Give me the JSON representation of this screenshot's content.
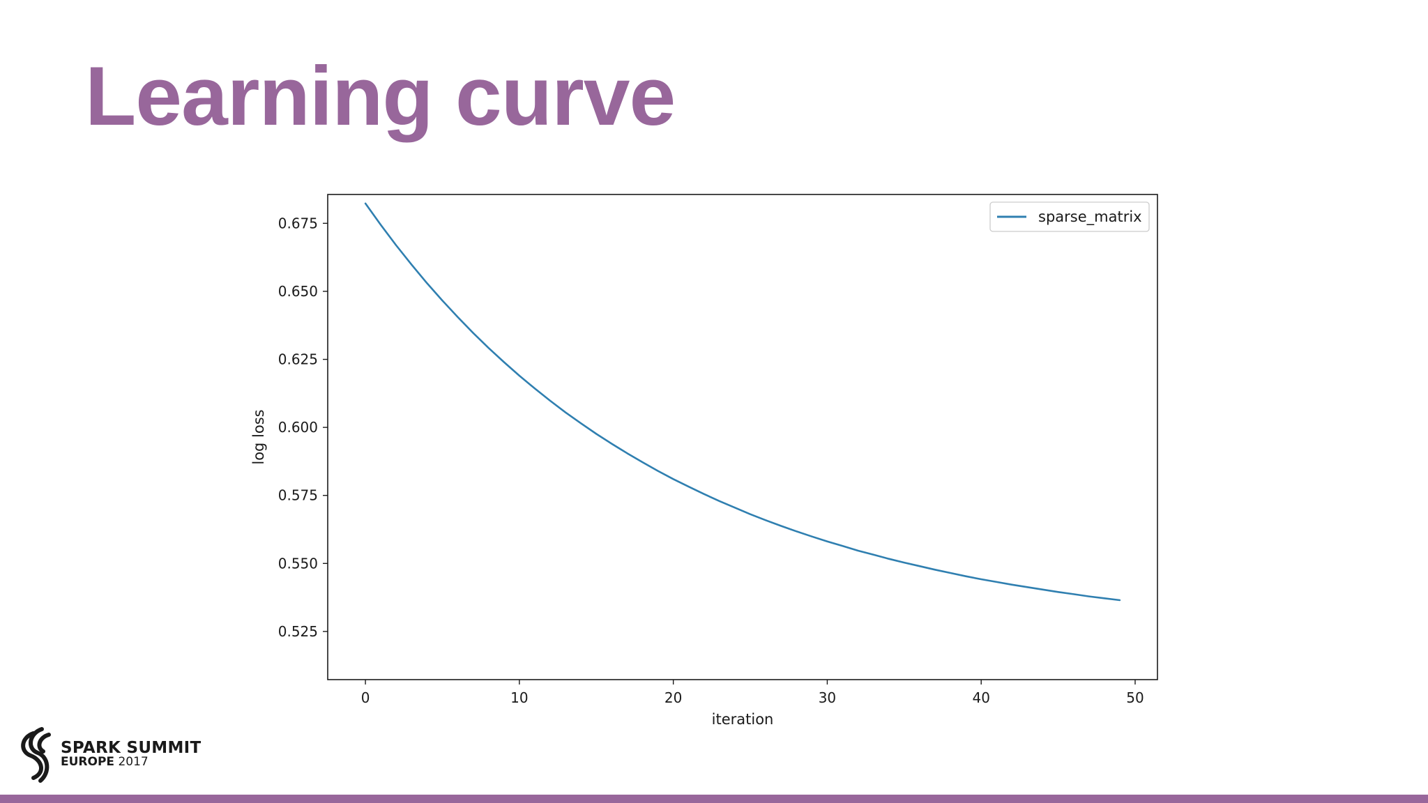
{
  "slide": {
    "title": "Learning curve",
    "brand_color": "#98679b",
    "logo": {
      "line1": "SPARK SUMMIT",
      "line2_bold": "EUROPE",
      "line2_rest": "2017"
    }
  },
  "chart_data": {
    "type": "line",
    "xlabel": "iteration",
    "ylabel": "log loss",
    "xlim": [
      -2.45,
      51.45
    ],
    "ylim": [
      0.5073,
      0.6856
    ],
    "xticks": [
      0,
      10,
      20,
      30,
      40,
      50
    ],
    "yticks": [
      0.525,
      0.55,
      0.575,
      0.6,
      0.625,
      0.65,
      0.675
    ],
    "ytick_labels": [
      "0.525",
      "0.550",
      "0.575",
      "0.600",
      "0.625",
      "0.650",
      "0.675"
    ],
    "legend_position": "top-right",
    "grid": false,
    "series": [
      {
        "name": "sparse_matrix",
        "color": "#2f7fb0",
        "x": [
          0,
          1,
          2,
          3,
          4,
          5,
          6,
          7,
          8,
          9,
          10,
          11,
          12,
          13,
          14,
          15,
          16,
          17,
          18,
          19,
          20,
          21,
          22,
          23,
          24,
          25,
          26,
          27,
          28,
          29,
          30,
          31,
          32,
          33,
          34,
          35,
          36,
          37,
          38,
          39,
          40,
          41,
          42,
          43,
          44,
          45,
          46,
          47,
          48,
          49
        ],
        "values": [
          0.6823,
          0.6744,
          0.6669,
          0.6598,
          0.653,
          0.6466,
          0.6405,
          0.6347,
          0.6292,
          0.624,
          0.619,
          0.6143,
          0.6098,
          0.6055,
          0.6015,
          0.5976,
          0.594,
          0.5905,
          0.5872,
          0.584,
          0.581,
          0.5782,
          0.5755,
          0.5729,
          0.5705,
          0.5681,
          0.5659,
          0.5638,
          0.5618,
          0.5599,
          0.5581,
          0.5564,
          0.5547,
          0.5532,
          0.5517,
          0.5503,
          0.549,
          0.5477,
          0.5465,
          0.5453,
          0.5442,
          0.5432,
          0.5422,
          0.5413,
          0.5404,
          0.5395,
          0.5387,
          0.5379,
          0.5372,
          0.5365
        ]
      }
    ]
  }
}
